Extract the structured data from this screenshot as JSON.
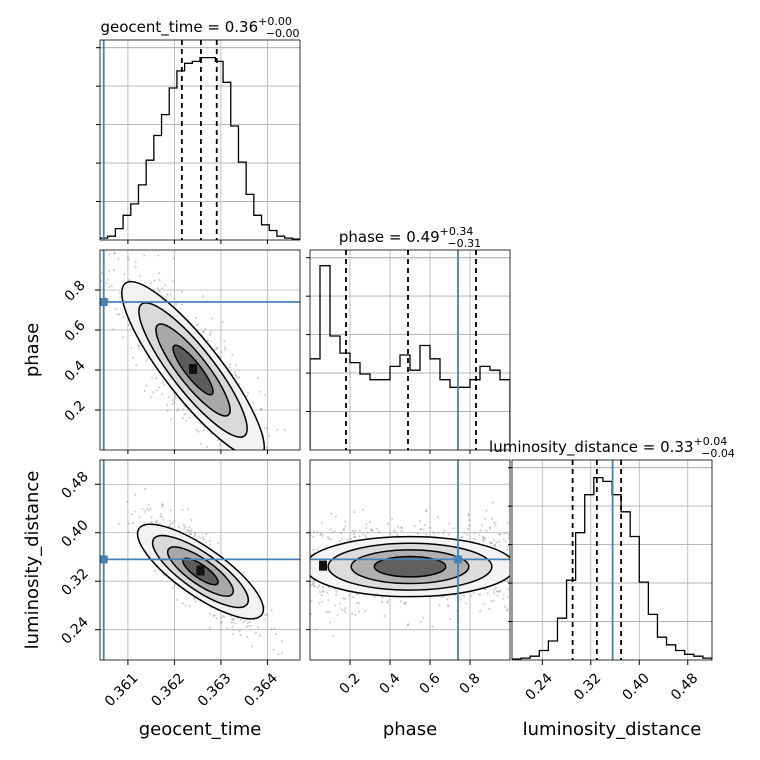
{
  "chart_data": {
    "type": "corner",
    "parameters": [
      {
        "name": "geocent_time",
        "axis_label": "geocent_time",
        "range": [
          0.3604,
          0.3647
        ],
        "ticks": [
          0.361,
          0.362,
          0.363,
          0.364
        ],
        "tick_labels": [
          "0.361",
          "0.362",
          "0.363",
          "0.364"
        ],
        "truth": 0.36048,
        "quantiles": [
          0.36216,
          0.36257,
          0.36291
        ],
        "title": {
          "main": "geocent_time = 0.36",
          "sup": "+0.00",
          "sub": "−0.00"
        }
      },
      {
        "name": "phase",
        "axis_label": "phase",
        "range": [
          0.0,
          1.0
        ],
        "ticks": [
          0.2,
          0.4,
          0.6,
          0.8
        ],
        "tick_labels": [
          "0.2",
          "0.4",
          "0.6",
          "0.8"
        ],
        "truth": 0.74,
        "quantiles": [
          0.18,
          0.49,
          0.83
        ],
        "title": {
          "main": "phase = 0.49",
          "sup": "+0.34",
          "sub": "−0.31"
        }
      },
      {
        "name": "luminosity_distance",
        "axis_label": "luminosity_distance",
        "range": [
          0.19,
          0.52
        ],
        "ticks": [
          0.24,
          0.32,
          0.4,
          0.48
        ],
        "tick_labels": [
          "0.24",
          "0.32",
          "0.40",
          "0.48"
        ],
        "truth": 0.356,
        "quantiles": [
          0.29,
          0.33,
          0.37
        ],
        "title": {
          "main": "luminosity_distance = 0.33",
          "sup": "+0.04",
          "sub": "−0.04"
        }
      }
    ],
    "histograms": {
      "geocent_time": [
        0.01,
        0.02,
        0.06,
        0.13,
        0.19,
        0.29,
        0.42,
        0.55,
        0.66,
        0.8,
        0.89,
        0.93,
        0.94,
        0.96,
        0.96,
        0.94,
        0.83,
        0.6,
        0.41,
        0.24,
        0.13,
        0.08,
        0.05,
        0.02,
        0.01,
        0.005
      ],
      "phase": [
        0.48,
        0.97,
        0.6,
        0.51,
        0.46,
        0.4,
        0.37,
        0.37,
        0.44,
        0.5,
        0.42,
        0.55,
        0.48,
        0.37,
        0.33,
        0.33,
        0.37,
        0.44,
        0.42,
        0.37
      ],
      "luminosity_distance": [
        0.005,
        0.01,
        0.02,
        0.05,
        0.1,
        0.22,
        0.42,
        0.67,
        0.87,
        0.96,
        0.94,
        0.87,
        0.78,
        0.65,
        0.41,
        0.24,
        0.12,
        0.08,
        0.05,
        0.03,
        0.02,
        0.01
      ]
    },
    "scatter_2d": {
      "phase_vs_geocent_time": {
        "direction": "negative",
        "center": [
          0.3624,
          0.4
        ],
        "spread": [
          0.0008,
          0.24
        ],
        "contour_levels": 4
      },
      "luminosity_distance_vs_geocent_time": {
        "direction": "negative",
        "center": [
          0.36256,
          0.336
        ],
        "spread": [
          0.0006,
          0.045
        ],
        "contour_levels": 4
      },
      "luminosity_distance_vs_phase": {
        "direction": "none",
        "center": [
          0.5,
          0.344
        ],
        "spread": [
          0.32,
          0.035
        ],
        "contour_levels": 4
      }
    },
    "truth_color": "#4682b4",
    "grid": true
  }
}
